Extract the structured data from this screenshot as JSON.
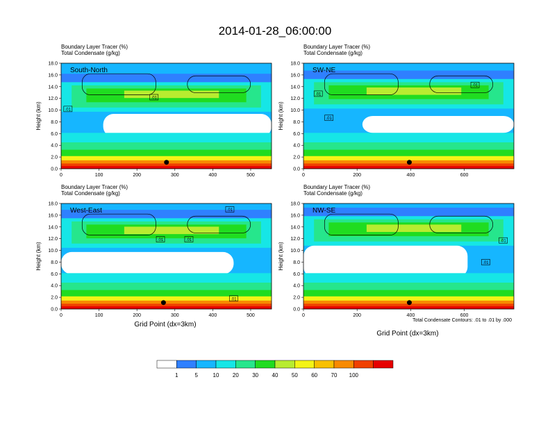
{
  "title": "2014-01-28_06:00:00",
  "colors": {
    "palette": [
      "#ffffff",
      "#2f80ff",
      "#16b6ff",
      "#16e6e6",
      "#26e68c",
      "#20dc20",
      "#b8ec30",
      "#f4f416",
      "#f8c000",
      "#f88a00",
      "#f04000",
      "#e60000"
    ]
  },
  "chart_data": [
    {
      "type": "contour",
      "panel": "South-North",
      "header_line1": "Boundary Layer Tracer   (%)",
      "header_line2": "Total Condensate   (g/kg)",
      "ylabel": "Height (km)",
      "xlabel": "",
      "xlim": [
        0,
        555
      ],
      "ylim": [
        0,
        18
      ],
      "xticks": [
        "0",
        "100",
        "200",
        "300",
        "400",
        "500"
      ],
      "xtick_values": [
        0,
        100,
        200,
        300,
        400,
        500
      ],
      "yticks": [
        "0.0",
        "2.0",
        "4.0",
        "6.0",
        "8.0",
        "10.0",
        "12.0",
        "14.0",
        "16.0",
        "18.0"
      ],
      "contour_labels": [
        {
          "text": ".01",
          "x": 18,
          "y": 10.2
        },
        {
          "text": ".01",
          "x": 245,
          "y": 12.2
        }
      ],
      "marker": {
        "x": 278,
        "y": 1.1
      }
    },
    {
      "type": "contour",
      "panel": "SW-NE",
      "header_line1": "Boundary Layer Tracer   (%)",
      "header_line2": "Total Condensate   (g/kg)",
      "ylabel": "Height (km)",
      "xlabel": "",
      "xlim": [
        0,
        785
      ],
      "ylim": [
        0,
        18
      ],
      "xticks": [
        "0",
        "200",
        "400",
        "600"
      ],
      "xtick_values": [
        0,
        200,
        400,
        600
      ],
      "yticks": [
        "0.0",
        "2.0",
        "4.0",
        "6.0",
        "8.0",
        "10.0",
        "12.0",
        "14.0",
        "16.0",
        "18.0"
      ],
      "contour_labels": [
        {
          "text": ".01",
          "x": 55,
          "y": 12.8
        },
        {
          "text": ".01",
          "x": 95,
          "y": 8.7
        },
        {
          "text": ".01",
          "x": 640,
          "y": 14.3
        }
      ],
      "marker": {
        "x": 395,
        "y": 1.1
      }
    },
    {
      "type": "contour",
      "panel": "West-East",
      "header_line1": "Boundary Layer Tracer   (%)",
      "header_line2": "Total Condensate   (g/kg)",
      "ylabel": "Height (km)",
      "xlabel": "Grid Point (dx=3km)",
      "xlim": [
        0,
        555
      ],
      "ylim": [
        0,
        18
      ],
      "xticks": [
        "0",
        "100",
        "200",
        "300",
        "400",
        "500"
      ],
      "xtick_values": [
        0,
        100,
        200,
        300,
        400,
        500
      ],
      "yticks": [
        "0.0",
        "2.0",
        "4.0",
        "6.0",
        "8.0",
        "10.0",
        "12.0",
        "14.0",
        "16.0",
        "18.0"
      ],
      "contour_labels": [
        {
          "text": ".01",
          "x": 262,
          "y": 11.9
        },
        {
          "text": ".01",
          "x": 337,
          "y": 11.9
        },
        {
          "text": ".01",
          "x": 445,
          "y": 17.0
        },
        {
          "text": ".01",
          "x": 455,
          "y": 1.8
        }
      ],
      "marker": {
        "x": 270,
        "y": 1.1
      }
    },
    {
      "type": "contour",
      "panel": "NW-SE",
      "header_line1": "Boundary Layer Tracer   (%)",
      "header_line2": "Total Condensate   (g/kg)",
      "ylabel": "Height (km)",
      "xlabel": "Grid Point (dx=3km)",
      "footnote": "Total Condensate Contours: .01 to .01 by .000",
      "xlim": [
        0,
        785
      ],
      "ylim": [
        0,
        18
      ],
      "xticks": [
        "0",
        "200",
        "400",
        "600"
      ],
      "xtick_values": [
        0,
        200,
        400,
        600
      ],
      "yticks": [
        "0.0",
        "2.0",
        "4.0",
        "6.0",
        "8.0",
        "10.0",
        "12.0",
        "14.0",
        "16.0",
        "18.0"
      ],
      "contour_labels": [
        {
          "text": ".01",
          "x": 745,
          "y": 11.7
        },
        {
          "text": ".01",
          "x": 680,
          "y": 8.0
        }
      ],
      "marker": {
        "x": 395,
        "y": 1.1
      }
    }
  ],
  "colorbar": {
    "levels": [
      "1",
      "5",
      "10",
      "20",
      "30",
      "40",
      "50",
      "60",
      "70",
      "100"
    ],
    "colors": [
      "#ffffff",
      "#2f80ff",
      "#16b6ff",
      "#16e6e6",
      "#26e68c",
      "#20dc20",
      "#b8ec30",
      "#f4f416",
      "#f8c000",
      "#f88a00",
      "#f04000",
      "#e60000"
    ]
  }
}
